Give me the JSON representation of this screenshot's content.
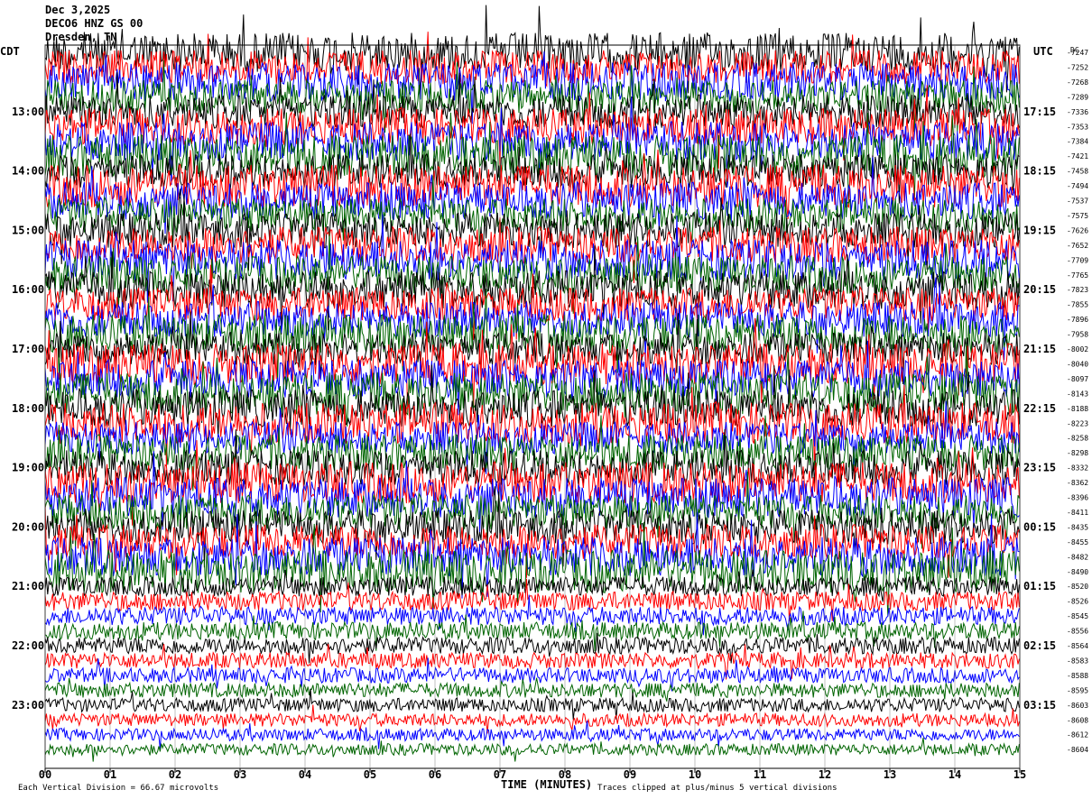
{
  "header": {
    "date": "Dec 3,2025",
    "station": "DECO6 HNZ GS 00",
    "location": "Dresden, TN"
  },
  "chart_data": {
    "type": "line",
    "title": "",
    "left_axis_title": "CDT",
    "right_axis_title": "UTC",
    "right_value_header": "DC",
    "xlabel": "TIME (MINUTES)",
    "x_ticks": [
      "00",
      "01",
      "02",
      "03",
      "04",
      "05",
      "06",
      "07",
      "08",
      "09",
      "10",
      "11",
      "12",
      "13",
      "14",
      "15"
    ],
    "xlim": [
      0,
      15
    ],
    "left_hour_labels": [
      "13:00",
      "14:00",
      "15:00",
      "16:00",
      "17:00",
      "18:00",
      "19:00",
      "20:00",
      "21:00",
      "22:00",
      "23:00"
    ],
    "right_hour_labels": [
      "17:15",
      "18:15",
      "19:15",
      "20:15",
      "21:15",
      "22:15",
      "23:15",
      "00:15",
      "01:15",
      "02:15",
      "03:15"
    ],
    "trace_colors": [
      "#000000",
      "#ff0000",
      "#0000ff",
      "#006400"
    ],
    "row_dc_values": [
      "-7247",
      "-7252",
      "-7268",
      "-7289",
      "-7336",
      "-7353",
      "-7384",
      "-7421",
      "-7458",
      "-7494",
      "-7537",
      "-7575",
      "-7626",
      "-7652",
      "-7709",
      "-7765",
      "-7823",
      "-7855",
      "-7896",
      "-7958",
      "-8002",
      "-8040",
      "-8097",
      "-8143",
      "-8188",
      "-8223",
      "-8258",
      "-8298",
      "-8332",
      "-8362",
      "-8396",
      "-8411",
      "-8435",
      "-8455",
      "-8482",
      "-8490",
      "-8520",
      "-8526",
      "-8545",
      "-8556",
      "-8564",
      "-8583",
      "-8588",
      "-8595",
      "-8603",
      "-8608",
      "-8612",
      "-8604"
    ],
    "footer_left": "Each Vertical Division =   66.67 microvolts",
    "footer_right": "Traces clipped at plus/minus 5 vertical divisions"
  }
}
